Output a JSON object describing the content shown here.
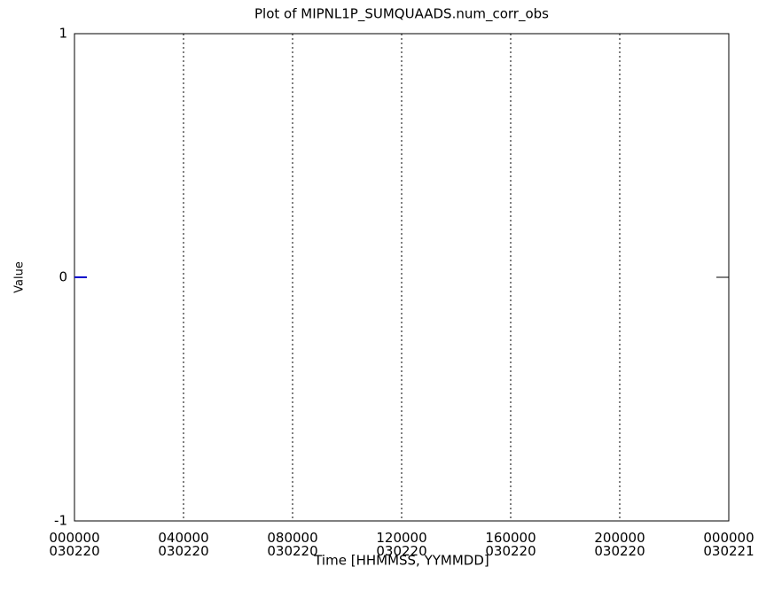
{
  "chart_data": {
    "type": "line",
    "title": "Plot of MIPNL1P_SUMQUAADS.num_corr_obs",
    "x_label": "Time [HHMMSS, YYMMDD]",
    "y_label": "Value",
    "x": [
      0,
      0.45
    ],
    "series": [
      {
        "name": "num_corr_obs",
        "color": "#0000cc",
        "values": [
          0,
          0
        ]
      }
    ],
    "xlim": [
      0,
      24
    ],
    "xticks": [
      {
        "value": 0,
        "label": "000000\n030220"
      },
      {
        "value": 4,
        "label": "040000\n030220"
      },
      {
        "value": 8,
        "label": "080000\n030220"
      },
      {
        "value": 12,
        "label": "120000\n030220"
      },
      {
        "value": 16,
        "label": "160000\n030220"
      },
      {
        "value": 20,
        "label": "200000\n030220"
      },
      {
        "value": 24,
        "label": "000000\n030221"
      }
    ],
    "ylim": [
      -1,
      1
    ],
    "yticks": [
      -1,
      0,
      1
    ],
    "grid": true
  }
}
